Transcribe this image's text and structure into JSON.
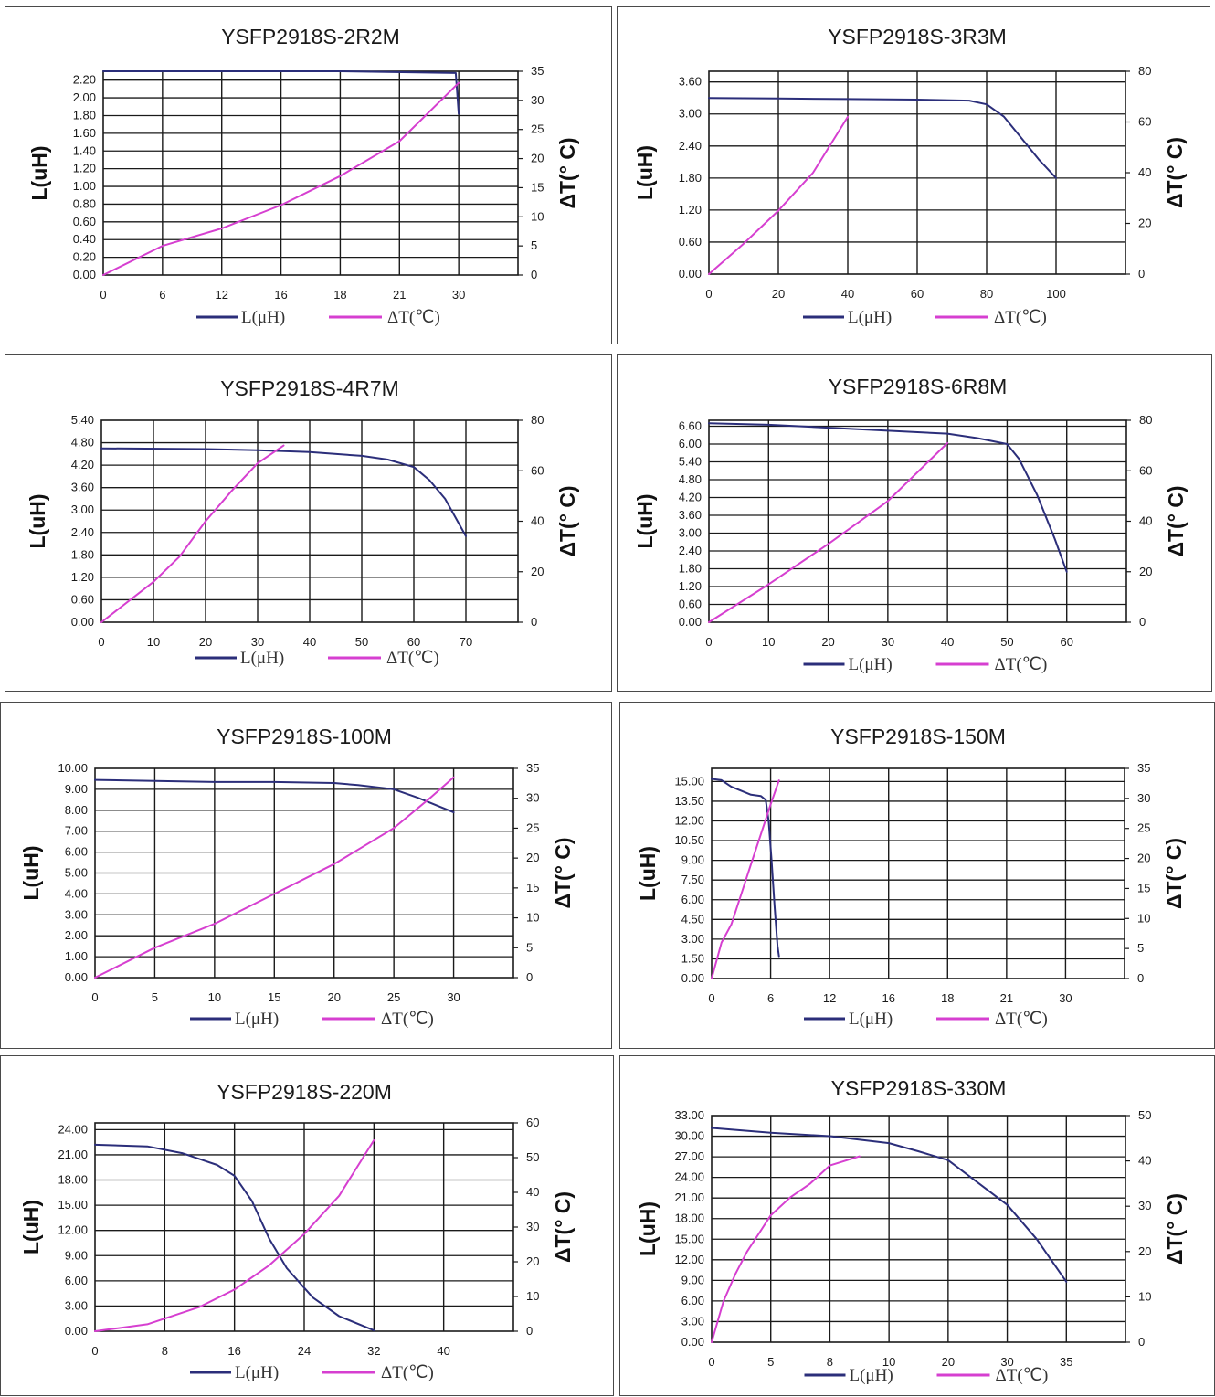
{
  "legend": {
    "l_label": "L(μH)",
    "t_label": "ΔT(℃)"
  },
  "colors": {
    "l": "#2b2e7a",
    "t": "#d63fd0",
    "grid": "#1a1a1a"
  },
  "chart_data": [
    {
      "type": "line",
      "title": "YSFP2918S-2R2M",
      "ylabel": "L(uH)",
      "y2label": "ΔT(° C)",
      "x_ticks": [
        "0",
        "6",
        "12",
        "16",
        "18",
        "21",
        "30"
      ],
      "y_ticks": [
        "0.00",
        "0.20",
        "0.40",
        "0.60",
        "0.80",
        "1.00",
        "1.20",
        "1.40",
        "1.60",
        "1.80",
        "2.00",
        "2.20"
      ],
      "y2_ticks": [
        "0",
        "5",
        "10",
        "15",
        "20",
        "25",
        "30",
        "35"
      ],
      "ylim": [
        0,
        2.3
      ],
      "y2lim": [
        0,
        35
      ],
      "grid": true,
      "series": [
        {
          "name": "L(μH)",
          "axis": "left",
          "points": [
            [
              0,
              2.3
            ],
            [
              2,
              2.3
            ],
            [
              4,
              2.3
            ],
            [
              5.95,
              2.28
            ],
            [
              6,
              1.82
            ]
          ]
        },
        {
          "name": "ΔT(℃)",
          "axis": "right",
          "points": [
            [
              0,
              0
            ],
            [
              1,
              5
            ],
            [
              2,
              8
            ],
            [
              3,
              12
            ],
            [
              4,
              17
            ],
            [
              5,
              23
            ],
            [
              6,
              33
            ]
          ]
        }
      ]
    },
    {
      "type": "line",
      "title": "YSFP2918S-3R3M",
      "ylabel": "L(uH)",
      "y2label": "ΔT(° C)",
      "x_ticks": [
        "0",
        "20",
        "40",
        "60",
        "80",
        "100"
      ],
      "y_ticks": [
        "0.00",
        "0.60",
        "1.20",
        "1.80",
        "2.40",
        "3.00",
        "3.60"
      ],
      "y2_ticks": [
        "0",
        "20",
        "40",
        "60",
        "80"
      ],
      "ylim": [
        0,
        3.8
      ],
      "y2lim": [
        0,
        80
      ],
      "grid": true,
      "series": [
        {
          "name": "L(μH)",
          "axis": "left",
          "points": [
            [
              0,
              3.3
            ],
            [
              20,
              3.29
            ],
            [
              40,
              3.28
            ],
            [
              60,
              3.27
            ],
            [
              75,
              3.25
            ],
            [
              80,
              3.18
            ],
            [
              85,
              2.95
            ],
            [
              90,
              2.55
            ],
            [
              95,
              2.15
            ],
            [
              100,
              1.8
            ]
          ]
        },
        {
          "name": "ΔT(℃)",
          "axis": "right",
          "points": [
            [
              0,
              0
            ],
            [
              10,
              12
            ],
            [
              20,
              25
            ],
            [
              30,
              40
            ],
            [
              40,
              62
            ]
          ]
        }
      ]
    },
    {
      "type": "line",
      "title": "YSFP2918S-4R7M",
      "ylabel": "L(uH)",
      "y2label": "ΔT(° C)",
      "x_ticks": [
        "0",
        "10",
        "20",
        "30",
        "40",
        "50",
        "60",
        "70"
      ],
      "y_ticks": [
        "0.00",
        "0.60",
        "1.20",
        "1.80",
        "2.40",
        "3.00",
        "3.60",
        "4.20",
        "4.80",
        "5.40"
      ],
      "y2_ticks": [
        "0",
        "20",
        "40",
        "60",
        "80"
      ],
      "ylim": [
        0,
        5.4
      ],
      "y2lim": [
        0,
        80
      ],
      "grid": true,
      "series": [
        {
          "name": "L(μH)",
          "axis": "left",
          "points": [
            [
              0,
              4.65
            ],
            [
              20,
              4.63
            ],
            [
              30,
              4.6
            ],
            [
              40,
              4.55
            ],
            [
              50,
              4.45
            ],
            [
              55,
              4.35
            ],
            [
              60,
              4.15
            ],
            [
              63,
              3.8
            ],
            [
              66,
              3.3
            ],
            [
              68,
              2.8
            ],
            [
              70,
              2.3
            ]
          ]
        },
        {
          "name": "ΔT(℃)",
          "axis": "right",
          "points": [
            [
              0,
              0
            ],
            [
              10,
              16
            ],
            [
              15,
              26
            ],
            [
              20,
              40
            ],
            [
              25,
              52
            ],
            [
              30,
              63
            ],
            [
              35,
              70
            ]
          ]
        }
      ]
    },
    {
      "type": "line",
      "title": "YSFP2918S-6R8M",
      "ylabel": "L(uH)",
      "y2label": "ΔT(° C)",
      "x_ticks": [
        "0",
        "10",
        "20",
        "30",
        "40",
        "50",
        "60"
      ],
      "y_ticks": [
        "0.00",
        "0.60",
        "1.20",
        "1.80",
        "2.40",
        "3.00",
        "3.60",
        "4.20",
        "4.80",
        "5.40",
        "6.00",
        "6.60"
      ],
      "y2_ticks": [
        "0",
        "20",
        "40",
        "60",
        "80"
      ],
      "ylim": [
        0,
        6.8
      ],
      "y2lim": [
        0,
        80
      ],
      "grid": true,
      "series": [
        {
          "name": "L(μH)",
          "axis": "left",
          "points": [
            [
              0,
              6.7
            ],
            [
              10,
              6.65
            ],
            [
              20,
              6.55
            ],
            [
              30,
              6.45
            ],
            [
              40,
              6.35
            ],
            [
              45,
              6.2
            ],
            [
              50,
              6.0
            ],
            [
              52,
              5.5
            ],
            [
              55,
              4.3
            ],
            [
              58,
              2.8
            ],
            [
              60,
              1.7
            ]
          ]
        },
        {
          "name": "ΔT(℃)",
          "axis": "right",
          "points": [
            [
              0,
              0
            ],
            [
              10,
              15
            ],
            [
              20,
              31
            ],
            [
              30,
              48
            ],
            [
              40,
              71
            ]
          ]
        }
      ]
    },
    {
      "type": "line",
      "title": "YSFP2918S-100M",
      "ylabel": "L(uH)",
      "y2label": "ΔT(° C)",
      "x_ticks": [
        "0",
        "5",
        "10",
        "15",
        "20",
        "25",
        "30"
      ],
      "y_ticks": [
        "0.00",
        "1.00",
        "2.00",
        "3.00",
        "4.00",
        "5.00",
        "6.00",
        "7.00",
        "8.00",
        "9.00",
        "10.00"
      ],
      "y2_ticks": [
        "0",
        "5",
        "10",
        "15",
        "20",
        "25",
        "30",
        "35"
      ],
      "ylim": [
        0,
        10
      ],
      "y2lim": [
        0,
        35
      ],
      "grid": true,
      "series": [
        {
          "name": "L(μH)",
          "axis": "left",
          "points": [
            [
              0,
              9.45
            ],
            [
              5,
              9.4
            ],
            [
              10,
              9.35
            ],
            [
              15,
              9.35
            ],
            [
              20,
              9.3
            ],
            [
              22,
              9.2
            ],
            [
              25,
              9.0
            ],
            [
              27,
              8.6
            ],
            [
              30,
              7.9
            ]
          ]
        },
        {
          "name": "ΔT(℃)",
          "axis": "right",
          "points": [
            [
              0,
              0
            ],
            [
              5,
              5
            ],
            [
              10,
              9
            ],
            [
              15,
              14
            ],
            [
              20,
              19
            ],
            [
              25,
              25
            ],
            [
              28,
              30
            ],
            [
              30,
              33.5
            ]
          ]
        }
      ]
    },
    {
      "type": "line",
      "title": "YSFP2918S-150M",
      "ylabel": "L(uH)",
      "y2label": "ΔT(° C)",
      "x_ticks": [
        "0",
        "6",
        "12",
        "16",
        "18",
        "21",
        "30"
      ],
      "y_ticks": [
        "0.00",
        "1.50",
        "3.00",
        "4.50",
        "6.00",
        "7.50",
        "9.00",
        "10.50",
        "12.00",
        "13.50",
        "15.00"
      ],
      "y2_ticks": [
        "0",
        "5",
        "10",
        "15",
        "20",
        "25",
        "30",
        "35"
      ],
      "ylim": [
        0,
        16
      ],
      "y2lim": [
        0,
        35
      ],
      "grid": true,
      "series": [
        {
          "name": "L(μH)",
          "axis": "left",
          "points": [
            [
              0,
              15.2
            ],
            [
              1,
              15.1
            ],
            [
              2,
              14.6
            ],
            [
              3,
              14.3
            ],
            [
              4,
              14.0
            ],
            [
              5,
              13.9
            ],
            [
              5.5,
              13.6
            ],
            [
              5.8,
              12.0
            ],
            [
              6.1,
              9.0
            ],
            [
              6.4,
              5.5
            ],
            [
              6.7,
              2.5
            ],
            [
              6.85,
              1.7
            ]
          ]
        },
        {
          "name": "ΔT(℃)",
          "axis": "right",
          "points": [
            [
              0,
              0
            ],
            [
              1,
              6
            ],
            [
              2,
              9
            ],
            [
              3,
              14
            ],
            [
              4,
              19
            ],
            [
              5,
              24
            ],
            [
              6,
              29
            ],
            [
              6.85,
              33
            ]
          ]
        }
      ]
    },
    {
      "type": "line",
      "title": "YSFP2918S-220M",
      "ylabel": "L(uH)",
      "y2label": "ΔT(° C)",
      "x_ticks": [
        "0",
        "8",
        "16",
        "24",
        "32",
        "40"
      ],
      "y_ticks": [
        "0.00",
        "3.00",
        "6.00",
        "9.00",
        "12.00",
        "15.00",
        "18.00",
        "21.00",
        "24.00"
      ],
      "y2_ticks": [
        "0",
        "10",
        "20",
        "30",
        "40",
        "50",
        "60"
      ],
      "ylim": [
        0,
        24.8
      ],
      "y2lim": [
        0,
        60
      ],
      "grid": true,
      "series": [
        {
          "name": "L(μH)",
          "axis": "left",
          "points": [
            [
              0,
              22.2
            ],
            [
              6,
              22.0
            ],
            [
              10,
              21.2
            ],
            [
              14,
              19.8
            ],
            [
              16,
              18.5
            ],
            [
              18,
              15.5
            ],
            [
              20,
              11.0
            ],
            [
              22,
              7.5
            ],
            [
              25,
              4.0
            ],
            [
              28,
              1.8
            ],
            [
              32,
              0.1
            ]
          ]
        },
        {
          "name": "ΔT(℃)",
          "axis": "right",
          "points": [
            [
              0,
              0
            ],
            [
              6,
              2
            ],
            [
              12,
              7
            ],
            [
              16,
              12
            ],
            [
              20,
              19
            ],
            [
              24,
              28
            ],
            [
              28,
              39
            ],
            [
              32,
              55
            ]
          ]
        }
      ]
    },
    {
      "type": "line",
      "title": "YSFP2918S-330M",
      "ylabel": "L(uH)",
      "y2label": "ΔT(° C)",
      "x_ticks": [
        "0",
        "5",
        "8",
        "10",
        "20",
        "30",
        "35"
      ],
      "y_ticks": [
        "0.00",
        "3.00",
        "6.00",
        "9.00",
        "12.00",
        "15.00",
        "18.00",
        "21.00",
        "24.00",
        "27.00",
        "30.00",
        "33.00"
      ],
      "y2_ticks": [
        "0",
        "10",
        "20",
        "30",
        "40",
        "50"
      ],
      "ylim": [
        0,
        33
      ],
      "y2lim": [
        0,
        50
      ],
      "grid": true,
      "series": [
        {
          "name": "L(μH)",
          "axis": "left",
          "points": [
            [
              0,
              31.2
            ],
            [
              1,
              30.5
            ],
            [
              2,
              30.0
            ],
            [
              3,
              29.0
            ],
            [
              3.5,
              27.8
            ],
            [
              4,
              26.5
            ],
            [
              5,
              20.0
            ],
            [
              5.5,
              15.0
            ],
            [
              6,
              8.8
            ]
          ]
        },
        {
          "name": "ΔT(℃)",
          "axis": "right",
          "points": [
            [
              0,
              0
            ],
            [
              1,
              9
            ],
            [
              2,
              15
            ],
            [
              3,
              20
            ],
            [
              4,
              24
            ],
            [
              5,
              28
            ],
            [
              6,
              32
            ],
            [
              7,
              35
            ],
            [
              8,
              39
            ],
            [
              9,
              41
            ]
          ]
        }
      ]
    }
  ]
}
